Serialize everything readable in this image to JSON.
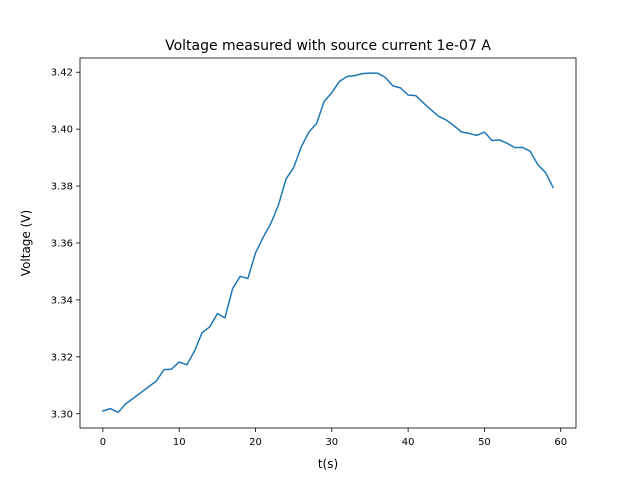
{
  "chart_data": {
    "type": "line",
    "title": "Voltage measured with source current 1e-07 A",
    "xlabel": "t(s)",
    "ylabel": "Voltage (V)",
    "xlim": [
      -3,
      62
    ],
    "ylim": [
      3.295,
      3.425
    ],
    "xticks": [
      0,
      10,
      20,
      30,
      40,
      50,
      60
    ],
    "xtick_labels": [
      "0",
      "10",
      "20",
      "30",
      "40",
      "50",
      "60"
    ],
    "yticks": [
      3.3,
      3.32,
      3.34,
      3.36,
      3.38,
      3.4,
      3.42
    ],
    "ytick_labels": [
      "3.30",
      "3.32",
      "3.34",
      "3.36",
      "3.38",
      "3.40",
      "3.42"
    ],
    "grid": false,
    "line_color": "#1f77b4",
    "series": [
      {
        "x": [
          0,
          1,
          2,
          3,
          4,
          5,
          6,
          7,
          8,
          9,
          10,
          11,
          12,
          13,
          14,
          15,
          16,
          17,
          18,
          19,
          20,
          21,
          22,
          23,
          24,
          25,
          26,
          27,
          28,
          29,
          30,
          31,
          32,
          33,
          34,
          35,
          36,
          37,
          38,
          39,
          40,
          41,
          42,
          43,
          44,
          45,
          46,
          47,
          48,
          49,
          50,
          51,
          52,
          53,
          54,
          55,
          56,
          57,
          58,
          59
        ],
        "values": [
          3.301,
          3.3018,
          3.3005,
          3.3035,
          3.3055,
          3.3075,
          3.3095,
          3.3115,
          3.3155,
          3.3157,
          3.3182,
          3.3172,
          3.322,
          3.3285,
          3.3305,
          3.3352,
          3.3337,
          3.344,
          3.3483,
          3.3475,
          3.3565,
          3.362,
          3.3668,
          3.3733,
          3.3825,
          3.3865,
          3.3938,
          3.399,
          3.402,
          3.4098,
          3.4128,
          3.4168,
          3.4185,
          3.4188,
          3.4195,
          3.4197,
          3.4197,
          3.4182,
          3.4152,
          3.4145,
          3.412,
          3.4118,
          3.4092,
          3.4068,
          3.4045,
          3.4032,
          3.4012,
          3.399,
          3.3985,
          3.3978,
          3.399,
          3.396,
          3.3962,
          3.395,
          3.3935,
          3.3936,
          3.3922,
          3.3875,
          3.3848,
          3.3795
        ]
      }
    ]
  }
}
